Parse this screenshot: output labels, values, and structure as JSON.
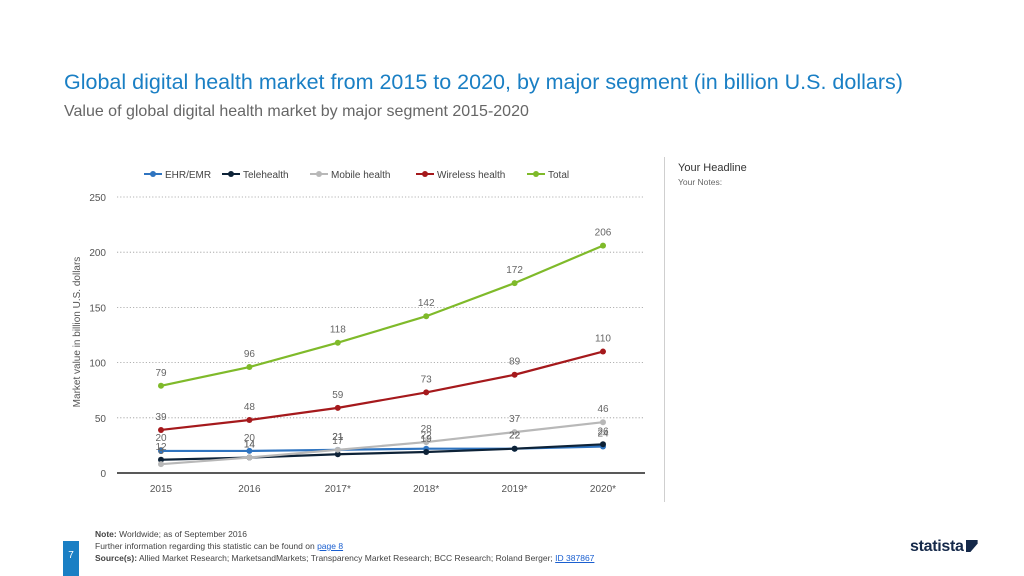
{
  "header": {
    "title": "Global digital health market from 2015 to 2020, by major segment (in billion U.S. dollars)",
    "subtitle": "Value of global digital health market by major segment 2015-2020"
  },
  "side_panel": {
    "headline": "Your Headline",
    "notes": "Your Notes:"
  },
  "footer": {
    "note_label": "Note:",
    "note_text": "Worldwide; as of September 2016",
    "further_info": "Further information regarding this statistic can be found on",
    "page_link": "page 8",
    "source_label": "Source(s):",
    "source_text": "Allied Market Research; MarketsandMarkets; Transparency Market Research; BCC Research; Roland Berger;",
    "id_link": "ID 387867",
    "page_number": "7",
    "brand": "statista"
  },
  "chart_data": {
    "type": "line",
    "title": "Global digital health market from 2015 to 2020, by major segment (in billion U.S. dollars)",
    "xlabel": "",
    "ylabel": "Market value in billion U.S. dollars",
    "ylim": [
      0,
      250
    ],
    "yticks": [
      0,
      50,
      100,
      150,
      200,
      250
    ],
    "grid": true,
    "legend_position": "top",
    "categories": [
      "2015",
      "2016",
      "2017*",
      "2018*",
      "2019*",
      "2020*"
    ],
    "series": [
      {
        "name": "EHR/EMR",
        "color": "#2f74c0",
        "values": [
          20,
          20,
          21,
          22,
          22,
          24
        ],
        "labels": [
          "20",
          "20",
          "21",
          "22",
          "22",
          "24"
        ]
      },
      {
        "name": "Telehealth",
        "color": "#0d2237",
        "values": [
          12,
          14,
          17,
          19,
          22,
          26
        ],
        "labels": [
          "12",
          "14",
          "17",
          "19",
          "22",
          "26"
        ]
      },
      {
        "name": "Mobile health",
        "color": "#b8b8b8",
        "values": [
          8,
          14,
          21,
          28,
          37,
          46
        ],
        "labels": [
          "8",
          "14",
          "21",
          "28",
          "37",
          "46"
        ]
      },
      {
        "name": "Wireless health",
        "color": "#a5191c",
        "values": [
          39,
          48,
          59,
          73,
          89,
          110
        ],
        "labels": [
          "39",
          "48",
          "59",
          "73",
          "89",
          "110"
        ]
      },
      {
        "name": "Total",
        "color": "#7fba2a",
        "values": [
          79,
          96,
          118,
          142,
          172,
          206
        ],
        "labels": [
          "79",
          "96",
          "118",
          "142",
          "172",
          "206"
        ]
      }
    ]
  }
}
